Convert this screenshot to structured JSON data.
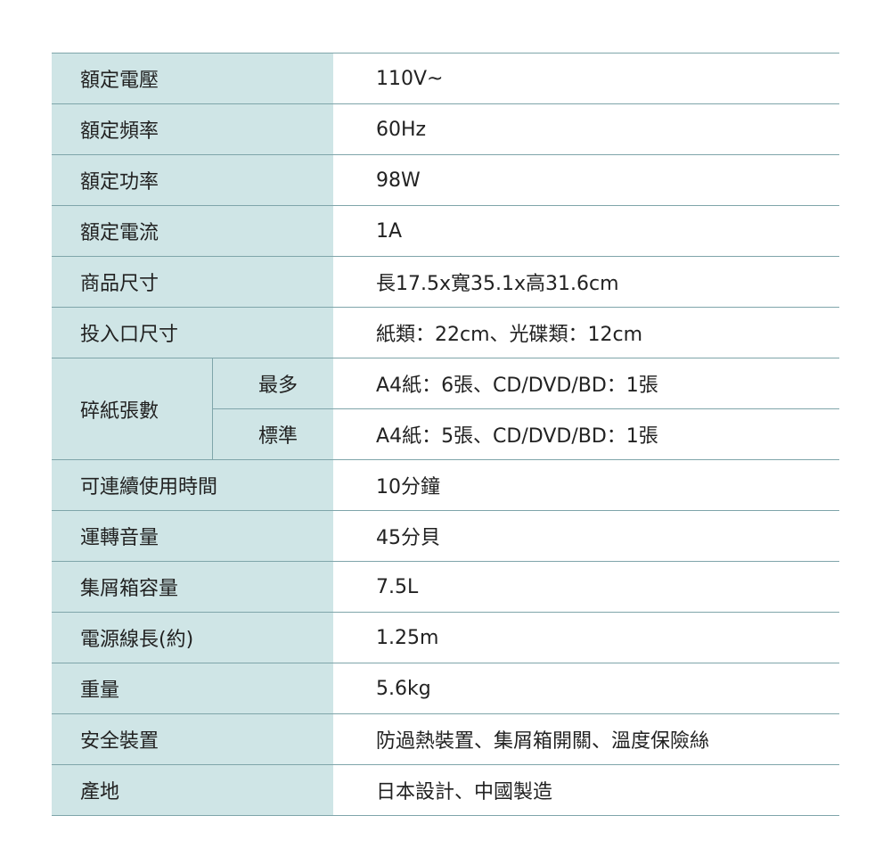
{
  "table": {
    "rows": [
      {
        "label": "額定電壓",
        "value": "110V~"
      },
      {
        "label": "額定頻率",
        "value": "60Hz"
      },
      {
        "label": "額定功率",
        "value": "98W"
      },
      {
        "label": "額定電流",
        "value": "1A"
      },
      {
        "label": "商品尺寸",
        "value": "長17.5x寬35.1x高31.6cm"
      },
      {
        "label": "投入口尺寸",
        "value": "紙類：22cm、光碟類：12cm"
      },
      {
        "label": "碎紙張數",
        "sub": [
          {
            "label": "最多",
            "value": "A4紙：6張、CD/DVD/BD：1張"
          },
          {
            "label": "標準",
            "value": "A4紙：5張、CD/DVD/BD：1張"
          }
        ]
      },
      {
        "label": "可連續使用時間",
        "value": "10分鐘"
      },
      {
        "label": "運轉音量",
        "value": "45分貝"
      },
      {
        "label": "集屑箱容量",
        "value": "7.5L"
      },
      {
        "label": "電源線長(約)",
        "value": "1.25m"
      },
      {
        "label": "重量",
        "value": "5.6kg"
      },
      {
        "label": "安全裝置",
        "value": "防過熱裝置、集屑箱開關、溫度保險絲"
      },
      {
        "label": "產地",
        "value": "日本設計、中國製造"
      }
    ]
  }
}
